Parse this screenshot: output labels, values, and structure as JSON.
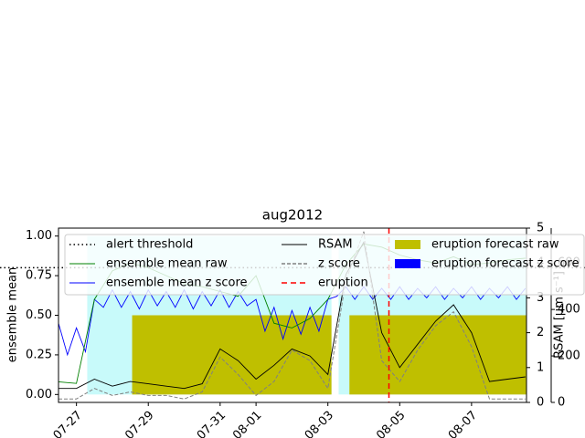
{
  "chart_data": {
    "type": "line",
    "title": "aug2012",
    "y_label": "ensemble mean",
    "y3_label": "RSAM [μm s⁻¹]",
    "xlim": [
      26.5,
      39.53
    ],
    "xticks": [
      {
        "value": 27,
        "label": "07-27"
      },
      {
        "value": 29,
        "label": "07-29"
      },
      {
        "value": 31,
        "label": "07-31"
      },
      {
        "value": 32,
        "label": "08-01"
      },
      {
        "value": 34,
        "label": "08-03"
      },
      {
        "value": 36,
        "label": "08-05"
      },
      {
        "value": 38,
        "label": "08-07"
      }
    ],
    "ylim": [
      -0.05,
      1.05
    ],
    "yticks": [
      {
        "value": 0,
        "label": "0.00"
      },
      {
        "value": 0.25,
        "label": "0.25"
      },
      {
        "value": 0.5,
        "label": "0.50"
      },
      {
        "value": 0.75,
        "label": "0.75"
      },
      {
        "value": 1,
        "label": "1.00"
      }
    ],
    "y2lim": [
      0,
      5
    ],
    "y2ticks": [
      0,
      1,
      2,
      3,
      4,
      5
    ],
    "y3lim": [
      0,
      750
    ],
    "y3ticks": [
      0,
      200,
      400,
      600
    ],
    "series": [
      {
        "name": "alert threshold",
        "style": "hline",
        "color": "#000000",
        "axis": "y",
        "values": [
          0.8
        ]
      },
      {
        "name": "ensemble mean raw",
        "style": "line",
        "color": "#008000",
        "axis": "y",
        "x": [
          26.5,
          27,
          27.5,
          28,
          28.5,
          29,
          29.5,
          30,
          30.5,
          31,
          31.5,
          32,
          32.5,
          33,
          33.5,
          34,
          34.5,
          35,
          35.5,
          36,
          36.5,
          37,
          37.5,
          38,
          38.5,
          39,
          39.5
        ],
        "values": [
          0.08,
          0.07,
          0.6,
          0.78,
          0.83,
          0.8,
          0.75,
          0.7,
          0.68,
          0.65,
          0.62,
          0.75,
          0.45,
          0.42,
          0.48,
          0.6,
          0.82,
          0.95,
          0.93,
          0.88,
          0.85,
          0.83,
          0.87,
          0.82,
          0.83,
          0.85,
          0.86
        ]
      },
      {
        "name": "ensemble mean z score",
        "style": "line",
        "color": "#0000ff",
        "axis": "y",
        "x": [
          26.5,
          26.75,
          27,
          27.25,
          27.5,
          27.75,
          28,
          28.25,
          28.5,
          28.75,
          29,
          29.25,
          29.5,
          29.75,
          30,
          30.25,
          30.5,
          30.75,
          31,
          31.25,
          31.5,
          31.75,
          32,
          32.25,
          32.5,
          32.75,
          33,
          33.25,
          33.5,
          33.75,
          34,
          34.25,
          34.5,
          34.75,
          35,
          35.25,
          35.5,
          35.75,
          36,
          36.25,
          36.5,
          36.75,
          37,
          37.25,
          37.5,
          37.75,
          38,
          38.25,
          38.5,
          38.75,
          39,
          39.25,
          39.5
        ],
        "values": [
          0.45,
          0.25,
          0.42,
          0.27,
          0.6,
          0.55,
          0.66,
          0.55,
          0.65,
          0.54,
          0.66,
          0.56,
          0.65,
          0.55,
          0.66,
          0.54,
          0.65,
          0.56,
          0.66,
          0.55,
          0.65,
          0.56,
          0.6,
          0.4,
          0.55,
          0.35,
          0.53,
          0.38,
          0.55,
          0.4,
          0.6,
          0.62,
          0.68,
          0.6,
          0.68,
          0.6,
          0.67,
          0.6,
          0.68,
          0.6,
          0.67,
          0.61,
          0.68,
          0.6,
          0.67,
          0.61,
          0.68,
          0.6,
          0.67,
          0.61,
          0.68,
          0.6,
          0.67
        ]
      },
      {
        "name": "RSAM",
        "style": "line",
        "color": "#000000",
        "axis": "y3",
        "x": [
          26.5,
          27,
          27.5,
          28,
          28.5,
          29,
          29.5,
          30,
          30.5,
          31,
          31.5,
          32,
          32.5,
          33,
          33.5,
          34,
          34.5,
          35,
          35.5,
          36,
          36.5,
          37,
          37.5,
          38,
          38.5,
          39,
          39.5
        ],
        "values": [
          60,
          60,
          100,
          70,
          90,
          80,
          70,
          60,
          80,
          230,
          180,
          100,
          160,
          230,
          200,
          120,
          550,
          690,
          300,
          150,
          250,
          350,
          420,
          300,
          90,
          100,
          110
        ]
      },
      {
        "name": "z score",
        "style": "dashed",
        "color": "#808080",
        "axis": "y2",
        "x": [
          26.5,
          27,
          27.5,
          28,
          28.5,
          29,
          29.5,
          30,
          30.5,
          31,
          31.5,
          32,
          32.5,
          33,
          33.5,
          34,
          34.5,
          35,
          35.5,
          36,
          36.5,
          37,
          37.5,
          38,
          38.5,
          39,
          39.5
        ],
        "values": [
          0.1,
          0.1,
          0.4,
          0.2,
          0.3,
          0.2,
          0.2,
          0.1,
          0.3,
          1.3,
          0.8,
          0.2,
          0.6,
          1.5,
          1.2,
          0.4,
          3.5,
          4.9,
          1.2,
          0.6,
          1.5,
          2.2,
          2.6,
          1.6,
          0.1,
          0.1,
          0.1
        ]
      },
      {
        "name": "eruption",
        "style": "vline",
        "color": "#ff0000",
        "axis": "x",
        "values": [
          35.7
        ]
      },
      {
        "name": "eruption forecast raw",
        "style": "step-fill",
        "color": "#bfbf00",
        "axis": "y",
        "x": [
          26.5,
          28.55,
          34.1,
          34.6
        ],
        "values": [
          0,
          0.5,
          0,
          0.5
        ]
      },
      {
        "name": "eruption forecast z score",
        "style": "step-fill",
        "color": "#0000ff",
        "fill": "#c8fafa",
        "axis": "y",
        "x": [
          26.5,
          27.3,
          34.1,
          34.3
        ],
        "values": [
          0,
          1,
          0,
          1
        ]
      }
    ]
  }
}
